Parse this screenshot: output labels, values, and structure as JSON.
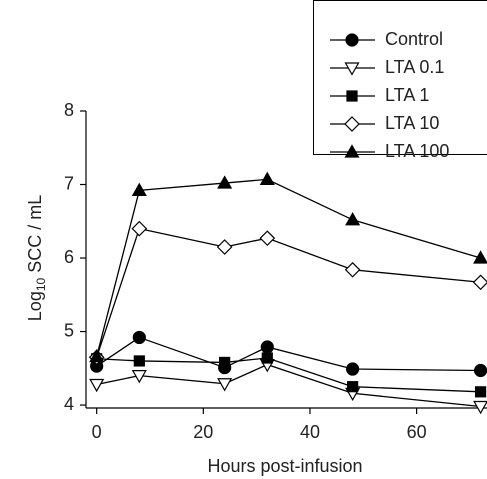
{
  "chart_data": {
    "type": "line",
    "xlabel": "Hours post-infusion",
    "ylabel": [
      "Log",
      "10",
      " SCC / mL"
    ],
    "x": [
      0,
      8,
      24,
      32,
      48,
      72
    ],
    "series": [
      {
        "name": "Control",
        "color": "#000000",
        "marker": "circle",
        "filled": true,
        "values": [
          4.53,
          4.92,
          4.51,
          4.79,
          4.49,
          4.47
        ]
      },
      {
        "name": "LTA 0.1",
        "color": "#000000",
        "marker": "triangle-down",
        "filled": false,
        "values": [
          4.28,
          4.4,
          4.29,
          4.55,
          4.16,
          3.98
        ]
      },
      {
        "name": "LTA 1",
        "color": "#000000",
        "marker": "square",
        "filled": true,
        "values": [
          4.63,
          4.6,
          4.58,
          4.64,
          4.25,
          4.18
        ]
      },
      {
        "name": "LTA 10",
        "color": "#000000",
        "marker": "diamond",
        "filled": false,
        "values": [
          4.65,
          6.4,
          6.15,
          6.27,
          5.84,
          5.67
        ]
      },
      {
        "name": "LTA 100",
        "color": "#000000",
        "marker": "triangle-up",
        "filled": true,
        "values": [
          4.66,
          6.92,
          7.02,
          7.07,
          6.52,
          6.0
        ]
      }
    ],
    "xlim": [
      -2,
      73.2
    ],
    "xticks": [
      0,
      20,
      40,
      60
    ],
    "ylim": [
      3.96,
      8
    ],
    "yticks": [
      4,
      5,
      6,
      7,
      8
    ],
    "legend": "top-right"
  }
}
